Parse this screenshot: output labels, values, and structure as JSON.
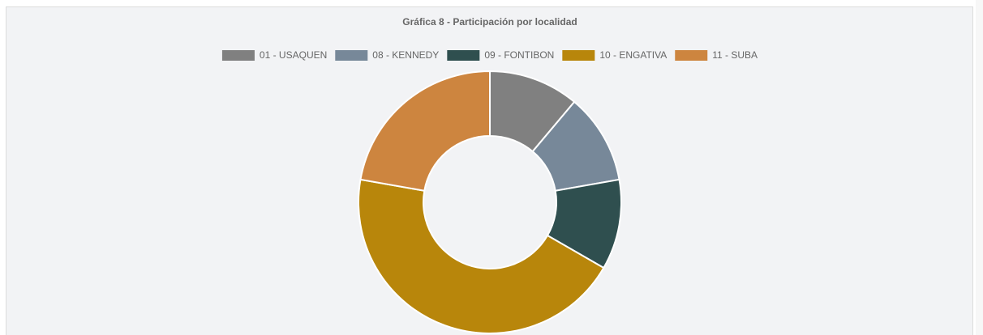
{
  "chart_data": {
    "type": "doughnut",
    "title": "Gráfica 8 - Participación por localidad",
    "categories": [
      "01 - USAQUEN",
      "08 - KENNEDY",
      "09 - FONTIBON",
      "10 - ENGATIVA",
      "11 - SUBA"
    ],
    "values": [
      1,
      1,
      1,
      4,
      2
    ],
    "colors": [
      "#808080",
      "#778899",
      "#2f4f4f",
      "#b8860b",
      "#cd853f"
    ],
    "legend": "top"
  }
}
